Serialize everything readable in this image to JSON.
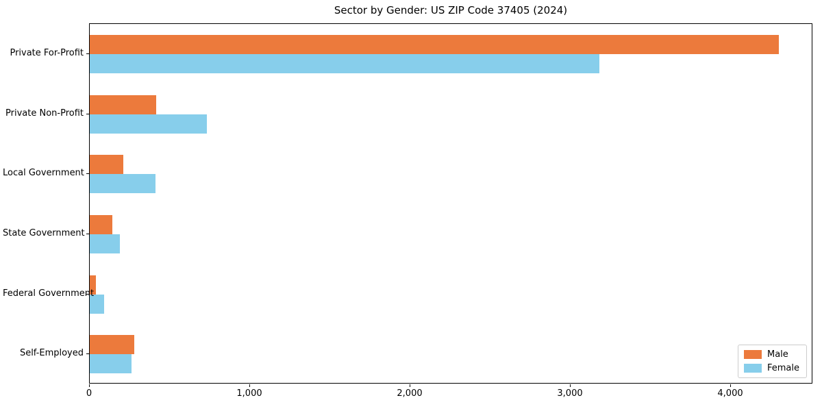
{
  "title": "Sector by Gender: US ZIP Code 37405 (2024)",
  "chart_data": {
    "type": "bar",
    "orientation": "horizontal",
    "title": "Sector by Gender: US ZIP Code 37405 (2024)",
    "categories": [
      "Private For-Profit",
      "Private Non-Profit",
      "Local Government",
      "State Government",
      "Federal Government",
      "Self-Employed"
    ],
    "series": [
      {
        "name": "Male",
        "color": "#EC7A3C",
        "values": [
          4300,
          415,
          210,
          140,
          40,
          280
        ]
      },
      {
        "name": "Female",
        "color": "#87CEEB",
        "values": [
          3180,
          730,
          410,
          190,
          90,
          260
        ]
      }
    ],
    "xlabel": "",
    "ylabel": "",
    "xlim": [
      0,
      4515
    ],
    "xticks": [
      0,
      1000,
      2000,
      3000,
      4000
    ],
    "xtick_labels": [
      "0",
      "1,000",
      "2,000",
      "3,000",
      "4,000"
    ],
    "grid": false,
    "legend_position": "lower right",
    "frame_color": "#000000",
    "background_color": "#ffffff"
  }
}
